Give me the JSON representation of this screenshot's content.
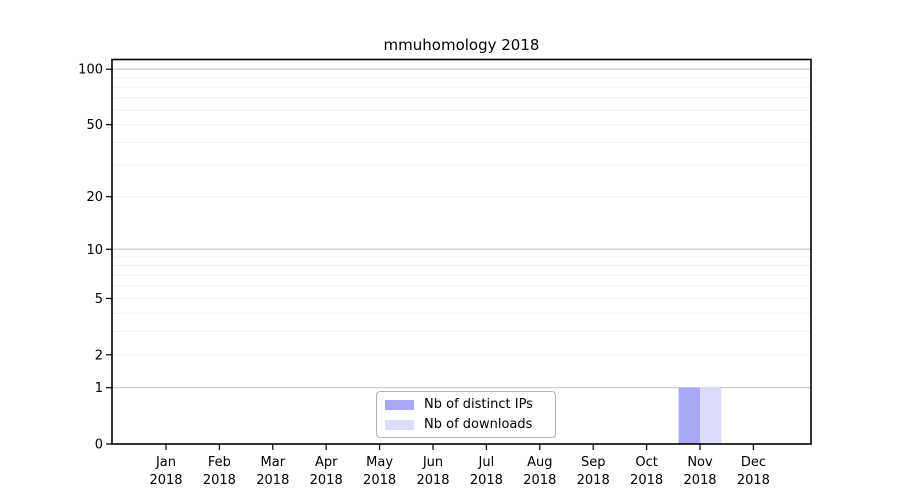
{
  "figure": {
    "background": "#ffffff"
  },
  "chart_data": {
    "type": "bar",
    "title": "mmuhomology 2018",
    "categories": [
      "Jan",
      "Feb",
      "Mar",
      "Apr",
      "May",
      "Jun",
      "Jul",
      "Aug",
      "Sep",
      "Oct",
      "Nov",
      "Dec"
    ],
    "category_year": "2018",
    "series": [
      {
        "name": "Nb of distinct IPs",
        "color": "#a8a8f6",
        "values": [
          0,
          0,
          0,
          0,
          0,
          0,
          0,
          0,
          0,
          0,
          1,
          0
        ]
      },
      {
        "name": "Nb of downloads",
        "color": "#dbdbfa",
        "values": [
          0,
          0,
          0,
          0,
          0,
          0,
          0,
          0,
          0,
          0,
          1,
          0
        ]
      }
    ],
    "y_axis": {
      "scale": "log1p",
      "tick_values": [
        0,
        1,
        2,
        5,
        10,
        20,
        50,
        100
      ],
      "tick_labels": [
        "0",
        "1",
        "2",
        "5",
        "10",
        "20",
        "50",
        "100"
      ],
      "major_gridlines": [
        1,
        10,
        100
      ],
      "minor_gridlines": [
        2,
        3,
        4,
        5,
        6,
        7,
        8,
        9,
        20,
        30,
        40,
        50,
        60,
        70,
        80,
        90
      ],
      "top_value": 113
    },
    "legend": {
      "position": "bottom-center-inside",
      "entries": [
        "Nb of distinct IPs",
        "Nb of downloads"
      ]
    },
    "colors": {
      "axis": "#000000",
      "text": "#000000",
      "grid_major": "#c9c9c9",
      "grid_minor": "#efefef",
      "legend_border": "#b3b3b3",
      "background": "#ffffff"
    }
  }
}
